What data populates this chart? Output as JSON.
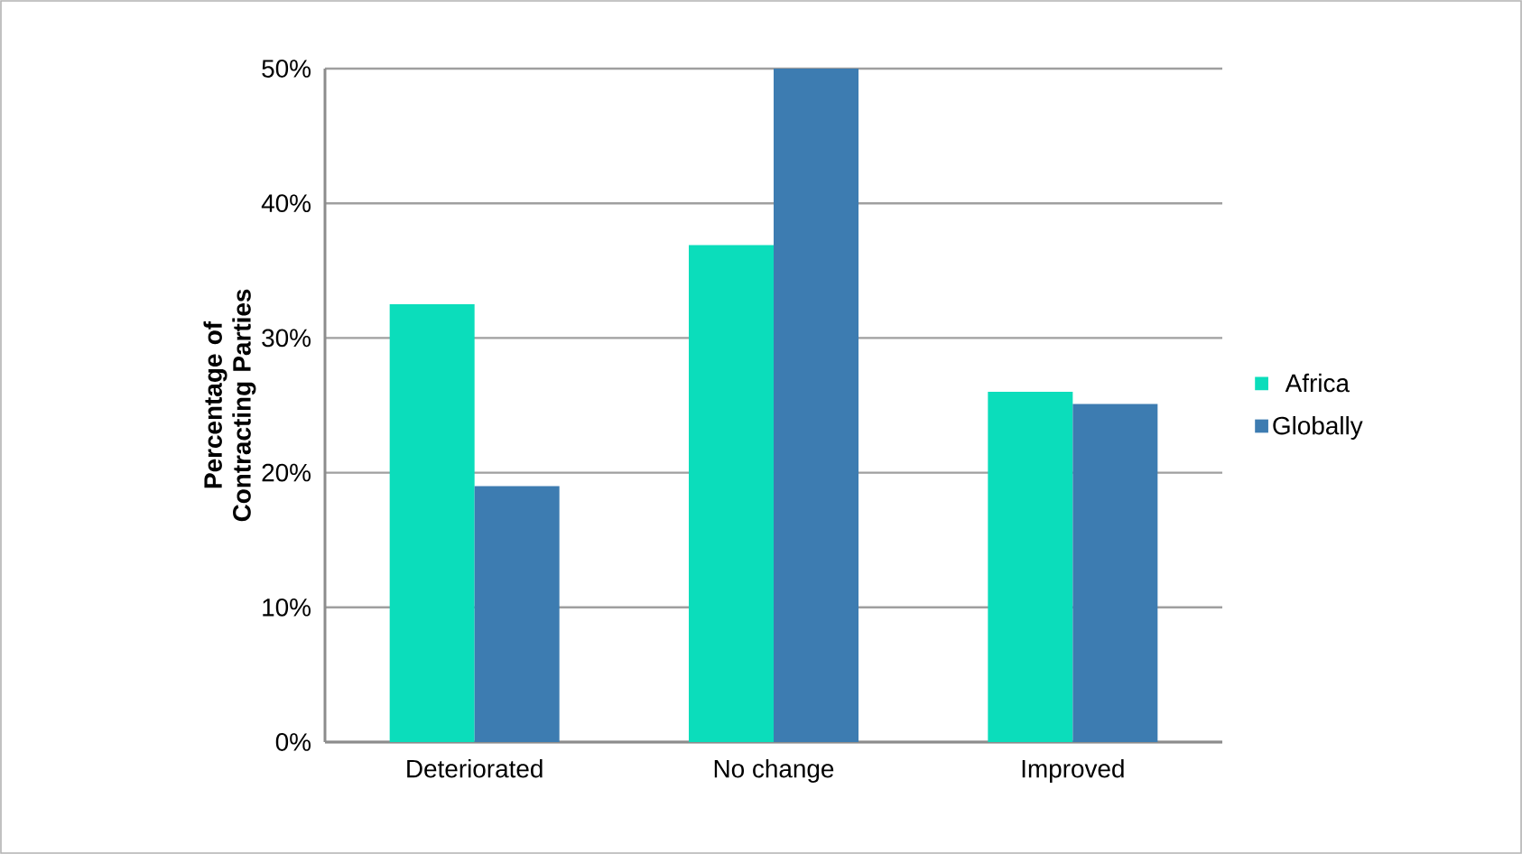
{
  "chart_data": {
    "type": "bar",
    "ylabel": "Percentage of Contracting Parties",
    "categories": [
      "Deteriorated",
      "No change",
      "Improved"
    ],
    "series": [
      {
        "name": "Africa",
        "color": "#0bddbb",
        "values": [
          32.5,
          36.9,
          26.0
        ]
      },
      {
        "name": "Globally",
        "color": "#3d7cb1",
        "values": [
          19.0,
          50.0,
          25.1
        ]
      }
    ],
    "ylim": [
      0,
      50
    ],
    "yticks": [
      {
        "value": 0,
        "label": "0%"
      },
      {
        "value": 10,
        "label": "10%"
      },
      {
        "value": 20,
        "label": "20%"
      },
      {
        "value": 30,
        "label": "30%"
      },
      {
        "value": 40,
        "label": "40%"
      },
      {
        "value": 50,
        "label": "50%"
      }
    ],
    "grid": "y",
    "legend": "right"
  }
}
